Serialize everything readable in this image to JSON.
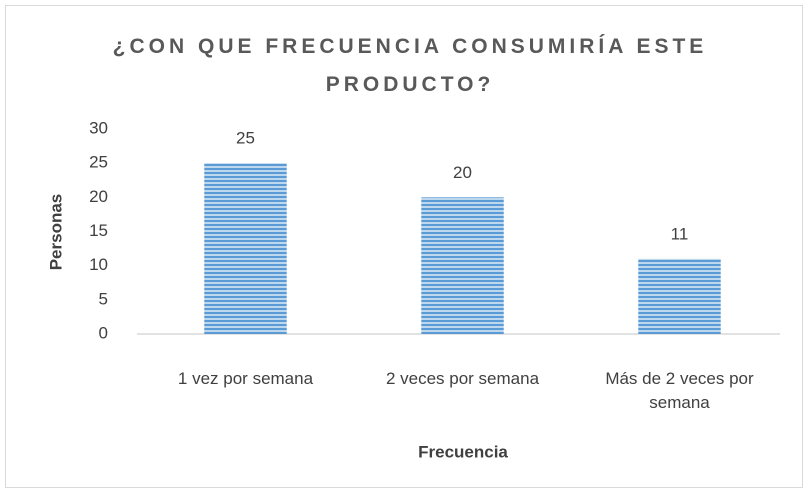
{
  "chart_data": {
    "type": "bar",
    "title": "¿CON QUE FRECUENCIA CONSUMIRÍA ESTE PRODUCTO?",
    "x_label": "Frecuencia",
    "y_label": "Personas",
    "categories": [
      "1 vez por semana",
      "2 veces por semana",
      "Más de 2 veces por semana"
    ],
    "values": [
      25,
      20,
      11
    ],
    "color": "#5b9bd5",
    "ylim": [
      0,
      30
    ],
    "yticks": [
      0,
      5,
      10,
      15,
      20,
      25,
      30
    ],
    "grid": false
  }
}
